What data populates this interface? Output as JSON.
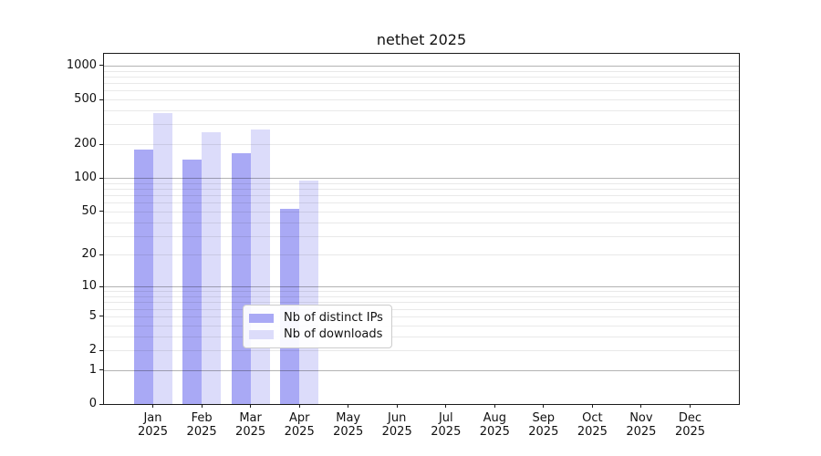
{
  "chart_data": {
    "type": "bar",
    "title": "nethet 2025",
    "categories": [
      {
        "label": "Jan",
        "sublabel": "2025"
      },
      {
        "label": "Feb",
        "sublabel": "2025"
      },
      {
        "label": "Mar",
        "sublabel": "2025"
      },
      {
        "label": "Apr",
        "sublabel": "2025"
      },
      {
        "label": "May",
        "sublabel": "2025"
      },
      {
        "label": "Jun",
        "sublabel": "2025"
      },
      {
        "label": "Jul",
        "sublabel": "2025"
      },
      {
        "label": "Aug",
        "sublabel": "2025"
      },
      {
        "label": "Sep",
        "sublabel": "2025"
      },
      {
        "label": "Oct",
        "sublabel": "2025"
      },
      {
        "label": "Nov",
        "sublabel": "2025"
      },
      {
        "label": "Dec",
        "sublabel": "2025"
      }
    ],
    "series": [
      {
        "name": "Nb of distinct IPs",
        "color": "#a9a9f5",
        "values": [
          180,
          145,
          165,
          53,
          0,
          0,
          0,
          0,
          0,
          0,
          0,
          0
        ]
      },
      {
        "name": "Nb of downloads",
        "color": "#dcdcfa",
        "values": [
          375,
          255,
          270,
          95,
          0,
          0,
          0,
          0,
          0,
          0,
          0,
          0
        ]
      }
    ],
    "yticks": [
      "0",
      "1",
      "2",
      "5",
      "10",
      "20",
      "50",
      "100",
      "200",
      "500",
      "1000"
    ],
    "ytick_values": [
      0,
      1,
      2,
      5,
      10,
      20,
      50,
      100,
      200,
      500,
      1000
    ],
    "major_grid_values": [
      1,
      10,
      100,
      1000
    ],
    "yscale": "log10(value+1)",
    "ylim": [
      0,
      1266
    ],
    "xlabel": "",
    "ylabel": "",
    "grid": {
      "horizontal": true,
      "minor_lines": true,
      "legend_position": "inside-bottom-center"
    },
    "legend": {
      "entries": [
        "Nb of distinct IPs",
        "Nb of downloads"
      ]
    },
    "colors": {
      "grid_minor": "#e9e9e9",
      "grid_major": "#b3b3b3",
      "spine": "#1a1a1a",
      "text": "#111111",
      "background": "#ffffff",
      "legend_border": "#cccccc"
    }
  }
}
